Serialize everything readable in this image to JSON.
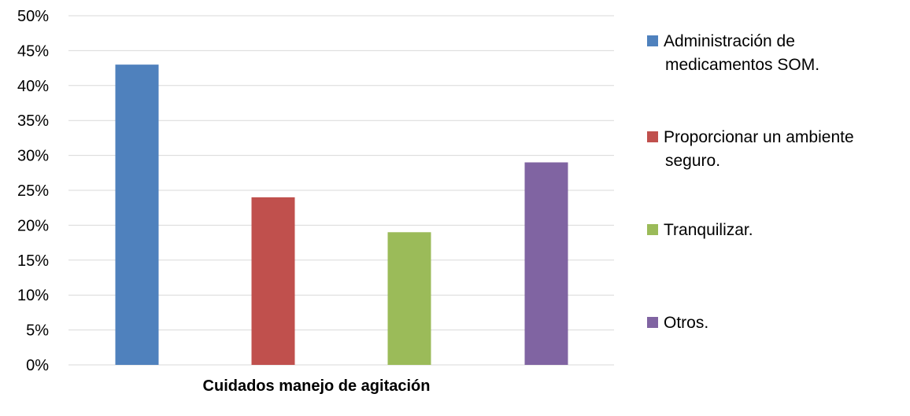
{
  "chart_data": {
    "type": "bar",
    "title": "",
    "xlabel": "Cuidados manejo de agitación",
    "ylabel": "",
    "ylim": [
      0,
      50
    ],
    "y_ticks": [
      "0%",
      "5%",
      "10%",
      "15%",
      "20%",
      "25%",
      "30%",
      "35%",
      "40%",
      "45%",
      "50%"
    ],
    "grid": true,
    "legend_position": "right",
    "series": [
      {
        "name": "Administración de medicamentos SOM.",
        "legend_lines": [
          "Administración de",
          "medicamentos SOM."
        ],
        "value": 43,
        "color": "#4f81bd"
      },
      {
        "name": "Proporcionar un ambiente seguro.",
        "legend_lines": [
          "Proporcionar un ambiente",
          "seguro."
        ],
        "value": 24,
        "color": "#c0504d"
      },
      {
        "name": "Tranquilizar.",
        "legend_lines": [
          "Tranquilizar."
        ],
        "value": 19,
        "color": "#9bbb59"
      },
      {
        "name": "Otros.",
        "legend_lines": [
          "Otros."
        ],
        "value": 29,
        "color": "#8064a2"
      }
    ]
  }
}
